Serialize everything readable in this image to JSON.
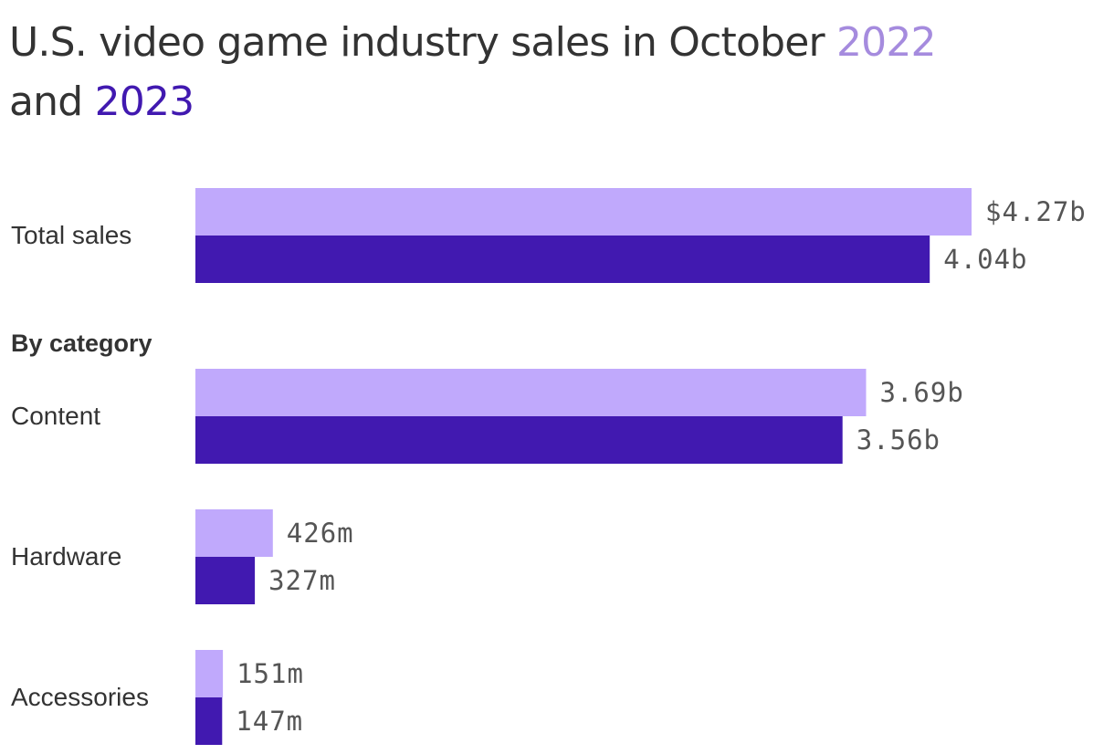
{
  "title": {
    "prefix": "U.S. video game industry sales in October ",
    "year_2022": "2022",
    "middle": " and ",
    "year_2023": "2023"
  },
  "section_label": "By category",
  "colors": {
    "series_2022": "#c0a9fc",
    "series_2023": "#4119b0",
    "text": "#333333",
    "value_text": "#555555"
  },
  "chart_data": {
    "type": "bar",
    "orientation": "horizontal",
    "title": "U.S. video game industry sales in October 2022 and 2023",
    "unit": "USD",
    "categories": [
      "Total sales",
      "Content",
      "Hardware",
      "Accessories"
    ],
    "series": [
      {
        "name": "2022",
        "color": "#c0a9fc",
        "values": [
          4270000000,
          3690000000,
          426000000,
          151000000
        ],
        "labels": [
          "$4.27b",
          "3.69b",
          "426m",
          "151m"
        ]
      },
      {
        "name": "2023",
        "color": "#4119b0",
        "values": [
          4040000000,
          3560000000,
          327000000,
          147000000
        ],
        "labels": [
          "4.04b",
          "3.56b",
          "327m",
          "147m"
        ]
      }
    ],
    "xlim": [
      0,
      4270000000
    ],
    "grid": false,
    "legend": "in-title"
  }
}
